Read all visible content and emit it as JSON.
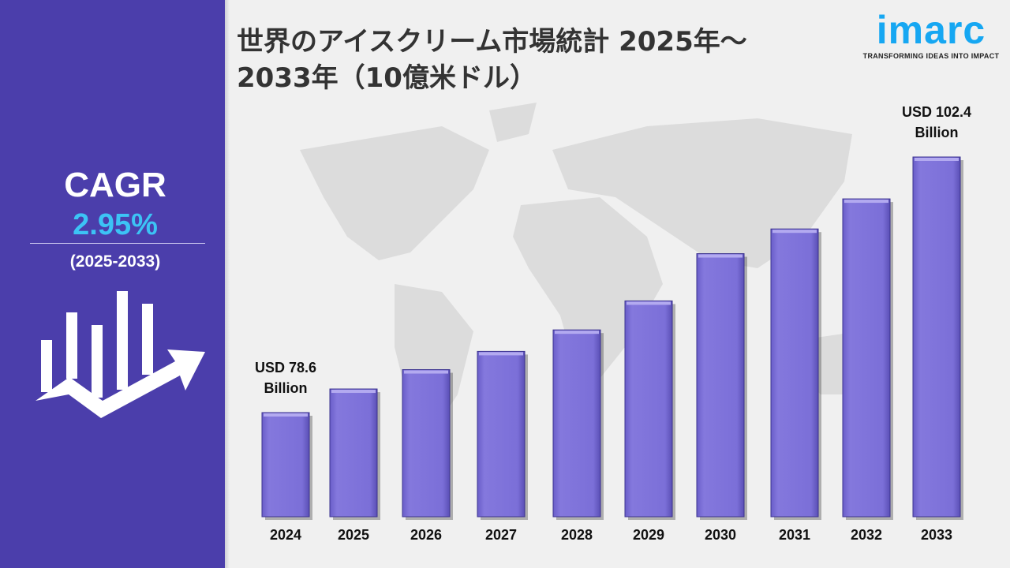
{
  "title": "世界のアイスクリーム市場統計 2025年～2033年（10億米ドル）",
  "logo": {
    "word": "imarc",
    "tagline": "TRANSFORMING IDEAS INTO IMPACT"
  },
  "sidebar": {
    "cagr_label": "CAGR",
    "cagr_value": "2.95%",
    "period": "(2025-2033)",
    "icon": "bar-chart-growth-arrow-icon"
  },
  "colors": {
    "sidebar": "#4b3eab",
    "bar": "#7b6fd8",
    "cagr_value": "#3cc3f5",
    "logo": "#16a7f2"
  },
  "chart_data": {
    "type": "bar",
    "title": "世界のアイスクリーム市場統計 2025年～2033年（10億米ドル）",
    "categories": [
      "2024",
      "2025",
      "2026",
      "2027",
      "2028",
      "2029",
      "2030",
      "2031",
      "2032",
      "2033"
    ],
    "values": [
      78.6,
      80.8,
      82.6,
      84.3,
      86.3,
      89.0,
      93.4,
      95.7,
      98.5,
      102.4
    ],
    "annotations": [
      {
        "category": "2024",
        "line1": "USD 78.6",
        "line2": "Billion"
      },
      {
        "category": "2033",
        "line1": "USD 102.4",
        "line2": "Billion"
      }
    ],
    "grid": false,
    "legend": "none"
  }
}
